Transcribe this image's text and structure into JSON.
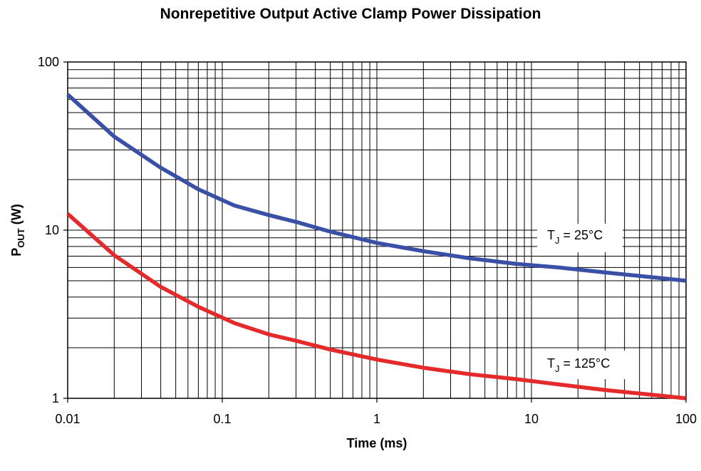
{
  "chart_data": {
    "type": "line",
    "title": "Nonrepetitive Output Active Clamp Power Dissipation",
    "xlabel": "Time (ms)",
    "ylabel": {
      "main": "P",
      "sub": "OUT",
      "suffix": " (W)"
    },
    "xscale": "log",
    "yscale": "log",
    "xlim": [
      0.01,
      100
    ],
    "ylim": [
      1,
      100
    ],
    "grid": true,
    "x_ticks": [
      "0.01",
      "0.1",
      "1",
      "10",
      "100"
    ],
    "y_ticks": [
      "1",
      "10",
      "100"
    ],
    "series": [
      {
        "name": "TJ = 25°C",
        "color": "#3a50a6",
        "x": [
          0.01,
          0.02,
          0.04,
          0.07,
          0.12,
          0.2,
          0.3,
          0.5,
          1,
          2,
          4,
          8,
          15,
          30,
          60,
          100
        ],
        "y": [
          64,
          36,
          23.5,
          17.5,
          14,
          12.3,
          11.2,
          9.8,
          8.4,
          7.5,
          6.8,
          6.3,
          6.0,
          5.6,
          5.25,
          5.0
        ]
      },
      {
        "name": "TJ = 125°C",
        "color": "#e42a2a",
        "x": [
          0.01,
          0.02,
          0.04,
          0.07,
          0.12,
          0.2,
          0.3,
          0.5,
          1,
          2,
          4,
          8,
          15,
          30,
          60,
          100
        ],
        "y": [
          12.5,
          7.1,
          4.6,
          3.5,
          2.8,
          2.4,
          2.2,
          1.95,
          1.7,
          1.52,
          1.39,
          1.3,
          1.21,
          1.12,
          1.05,
          1.0
        ]
      }
    ],
    "annotations": [
      {
        "main": "T",
        "sub": "J",
        "rest": " = 25°C",
        "series": 0
      },
      {
        "main": "T",
        "sub": "J",
        "rest": " = 125°C",
        "series": 1
      }
    ]
  }
}
